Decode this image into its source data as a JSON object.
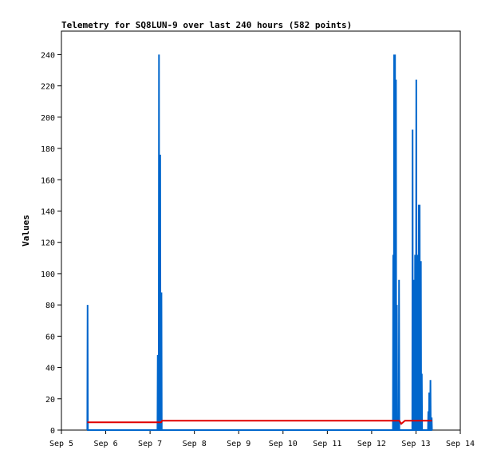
{
  "chart_data": {
    "type": "line",
    "title": "Telemetry for SQ8LUN-9 over last 240 hours (582 points)",
    "xlabel": "",
    "ylabel": "Values",
    "x_ticks": [
      "Sep 5",
      "Sep 6",
      "Sep 7",
      "Sep 8",
      "Sep 9",
      "Sep 10",
      "Sep 11",
      "Sep 12",
      "Sep 13",
      "Sep 14"
    ],
    "xlim": [
      "Sep 5 00:00",
      "Sep 14 00:00"
    ],
    "ylim": [
      0,
      255
    ],
    "y_ticks": [
      0,
      20,
      40,
      60,
      80,
      100,
      120,
      140,
      160,
      180,
      200,
      220,
      240
    ],
    "grid": false,
    "legend": "none",
    "series": [
      {
        "color": "#0066cc",
        "points": [
          [
            "Sep 5 14:00",
            0
          ],
          [
            "Sep 5 14:10",
            80
          ],
          [
            "Sep 5 14:20",
            0
          ],
          [
            "Sep 7 04:00",
            0
          ],
          [
            "Sep 7 04:10",
            48
          ],
          [
            "Sep 7 04:20",
            0
          ],
          [
            "Sep 7 04:40",
            0
          ],
          [
            "Sep 7 04:50",
            240
          ],
          [
            "Sep 7 05:00",
            0
          ],
          [
            "Sep 7 05:20",
            0
          ],
          [
            "Sep 7 05:30",
            176
          ],
          [
            "Sep 7 05:40",
            0
          ],
          [
            "Sep 7 06:00",
            0
          ],
          [
            "Sep 7 06:10",
            88
          ],
          [
            "Sep 7 06:20",
            0
          ],
          [
            "Sep 12 11:30",
            0
          ],
          [
            "Sep 12 11:40",
            112
          ],
          [
            "Sep 12 11:50",
            0
          ],
          [
            "Sep 12 12:00",
            0
          ],
          [
            "Sep 12 12:10",
            240
          ],
          [
            "Sep 12 12:20",
            0
          ],
          [
            "Sep 12 12:30",
            0
          ],
          [
            "Sep 12 12:40",
            240
          ],
          [
            "Sep 12 12:50",
            0
          ],
          [
            "Sep 12 13:00",
            0
          ],
          [
            "Sep 12 13:10",
            224
          ],
          [
            "Sep 12 13:20",
            0
          ],
          [
            "Sep 12 13:30",
            0
          ],
          [
            "Sep 12 13:40",
            80
          ],
          [
            "Sep 12 13:50",
            0
          ],
          [
            "Sep 12 14:40",
            0
          ],
          [
            "Sep 12 14:50",
            96
          ],
          [
            "Sep 12 15:00",
            0
          ],
          [
            "Sep 12 22:00",
            0
          ],
          [
            "Sep 12 22:10",
            192
          ],
          [
            "Sep 12 22:20",
            0
          ],
          [
            "Sep 12 22:40",
            0
          ],
          [
            "Sep 12 22:50",
            96
          ],
          [
            "Sep 12 23:00",
            0
          ],
          [
            "Sep 12 23:20",
            0
          ],
          [
            "Sep 12 23:30",
            112
          ],
          [
            "Sep 12 23:40",
            0
          ],
          [
            "Sep 13 00:00",
            0
          ],
          [
            "Sep 13 00:10",
            224
          ],
          [
            "Sep 13 00:20",
            0
          ],
          [
            "Sep 13 00:30",
            0
          ],
          [
            "Sep 13 00:40",
            112
          ],
          [
            "Sep 13 00:50",
            0
          ],
          [
            "Sep 13 01:20",
            0
          ],
          [
            "Sep 13 01:30",
            144
          ],
          [
            "Sep 13 01:40",
            0
          ],
          [
            "Sep 13 01:50",
            0
          ],
          [
            "Sep 13 02:00",
            144
          ],
          [
            "Sep 13 02:10",
            0
          ],
          [
            "Sep 13 02:30",
            0
          ],
          [
            "Sep 13 02:40",
            108
          ],
          [
            "Sep 13 02:50",
            0
          ],
          [
            "Sep 13 03:00",
            0
          ],
          [
            "Sep 13 03:10",
            36
          ],
          [
            "Sep 13 03:20",
            0
          ],
          [
            "Sep 13 06:30",
            0
          ],
          [
            "Sep 13 06:40",
            12
          ],
          [
            "Sep 13 06:50",
            0
          ],
          [
            "Sep 13 07:00",
            0
          ],
          [
            "Sep 13 07:10",
            24
          ],
          [
            "Sep 13 07:20",
            0
          ],
          [
            "Sep 13 07:40",
            0
          ],
          [
            "Sep 13 07:50",
            32
          ],
          [
            "Sep 13 08:00",
            0
          ],
          [
            "Sep 13 08:20",
            0
          ],
          [
            "Sep 13 08:30",
            8
          ],
          [
            "Sep 13 08:40",
            0
          ]
        ]
      },
      {
        "color": "#e00000",
        "points": [
          [
            "Sep 5 14:00",
            5
          ],
          [
            "Sep 7 06:00",
            5
          ],
          [
            "Sep 7 06:30",
            6
          ],
          [
            "Sep 12 11:30",
            6
          ],
          [
            "Sep 12 15:00",
            6
          ],
          [
            "Sep 12 16:00",
            4
          ],
          [
            "Sep 12 17:00",
            5
          ],
          [
            "Sep 12 18:00",
            6
          ],
          [
            "Sep 13 08:40",
            6
          ]
        ]
      }
    ]
  }
}
